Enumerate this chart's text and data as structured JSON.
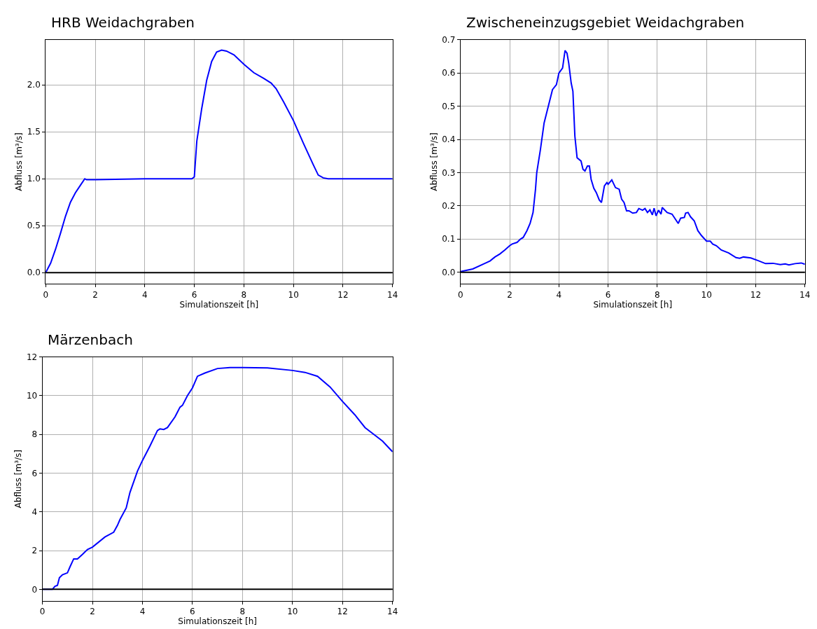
{
  "chart_data": [
    {
      "type": "line",
      "title": "HRB Weidachgraben",
      "xlabel": "Simulationszeit [h]",
      "ylabel": "Abfluss [m³/s]",
      "xlim": [
        0,
        14
      ],
      "ylim": [
        -0.12,
        2.48
      ],
      "xticks": [
        0,
        2,
        4,
        6,
        8,
        10,
        12,
        14
      ],
      "yticks": [
        {
          "value": 0,
          "label": "0.0"
        },
        {
          "value": 0.5,
          "label": "0.5"
        },
        {
          "value": 1,
          "label": "1.0"
        },
        {
          "value": 1.5,
          "label": "1.5"
        },
        {
          "value": 2,
          "label": "2.0"
        }
      ],
      "grid": true,
      "ref_lines": [
        {
          "axis": "y",
          "value": 0,
          "color": "#000000"
        }
      ],
      "series": [
        {
          "color": "#0000ff",
          "x": [
            0,
            0.2,
            0.4,
            0.6,
            0.8,
            1.0,
            1.2,
            1.4,
            1.58,
            1.65,
            2,
            4,
            5.9,
            6.0,
            6.1,
            6.3,
            6.5,
            6.7,
            6.9,
            7.1,
            7.3,
            7.6,
            8.0,
            8.4,
            8.8,
            9.1,
            9.3,
            9.6,
            10.0,
            10.4,
            10.8,
            11.0,
            11.2,
            11.4,
            12,
            14
          ],
          "values": [
            0,
            0.1,
            0.25,
            0.42,
            0.6,
            0.75,
            0.85,
            0.93,
            1.0,
            0.99,
            0.99,
            1.0,
            1.0,
            1.02,
            1.4,
            1.75,
            2.05,
            2.25,
            2.35,
            2.37,
            2.36,
            2.32,
            2.22,
            2.13,
            2.07,
            2.02,
            1.96,
            1.82,
            1.62,
            1.38,
            1.15,
            1.04,
            1.01,
            1.0,
            1.0,
            1.0
          ]
        }
      ]
    },
    {
      "type": "line",
      "title": "Zwischeneinzugsgebiet Weidachgraben",
      "xlabel": "Simulationszeit [h]",
      "ylabel": "Abfluss [m³/s]",
      "xlim": [
        0,
        14
      ],
      "ylim": [
        -0.035,
        0.7
      ],
      "xticks": [
        0,
        2,
        4,
        6,
        8,
        10,
        12,
        14
      ],
      "yticks": [
        {
          "value": 0,
          "label": "0.0"
        },
        {
          "value": 0.1,
          "label": "0.1"
        },
        {
          "value": 0.2,
          "label": "0.2"
        },
        {
          "value": 0.3,
          "label": "0.3"
        },
        {
          "value": 0.4,
          "label": "0.4"
        },
        {
          "value": 0.5,
          "label": "0.5"
        },
        {
          "value": 0.6,
          "label": "0.6"
        },
        {
          "value": 0.7,
          "label": "0.7"
        }
      ],
      "grid": true,
      "ref_lines": [
        {
          "axis": "y",
          "value": 0,
          "color": "#000000"
        }
      ],
      "series": [
        {
          "color": "#0000ff",
          "x": [
            0,
            0.5,
            1.0,
            1.2,
            1.4,
            1.6,
            1.8,
            2.0,
            2.1,
            2.3,
            2.44,
            2.55,
            2.7,
            2.83,
            2.95,
            3.05,
            3.1,
            3.25,
            3.4,
            3.74,
            3.9,
            4.0,
            4.15,
            4.25,
            4.33,
            4.4,
            4.5,
            4.57,
            4.65,
            4.74,
            4.9,
            4.98,
            5.06,
            5.16,
            5.24,
            5.31,
            5.42,
            5.52,
            5.64,
            5.73,
            5.85,
            5.95,
            6.0,
            6.15,
            6.3,
            6.45,
            6.55,
            6.65,
            6.75,
            6.85,
            7.0,
            7.15,
            7.25,
            7.4,
            7.5,
            7.6,
            7.7,
            7.8,
            7.87,
            7.95,
            8.05,
            8.15,
            8.2,
            8.4,
            8.6,
            8.85,
            8.95,
            9.1,
            9.15,
            9.25,
            9.35,
            9.5,
            9.65,
            9.8,
            10.0,
            10.15,
            10.25,
            10.4,
            10.6,
            10.9,
            11.2,
            11.35,
            11.5,
            11.8,
            12.1,
            12.4,
            12.7,
            13.0,
            13.2,
            13.35,
            13.6,
            13.85,
            14
          ],
          "values": [
            0.002,
            0.01,
            0.027,
            0.034,
            0.046,
            0.055,
            0.067,
            0.08,
            0.085,
            0.09,
            0.1,
            0.105,
            0.125,
            0.147,
            0.18,
            0.25,
            0.3,
            0.37,
            0.45,
            0.55,
            0.565,
            0.6,
            0.615,
            0.668,
            0.66,
            0.63,
            0.57,
            0.545,
            0.41,
            0.345,
            0.335,
            0.31,
            0.305,
            0.32,
            0.32,
            0.28,
            0.253,
            0.24,
            0.218,
            0.21,
            0.26,
            0.27,
            0.265,
            0.278,
            0.255,
            0.25,
            0.22,
            0.21,
            0.185,
            0.185,
            0.178,
            0.18,
            0.192,
            0.187,
            0.192,
            0.18,
            0.188,
            0.173,
            0.193,
            0.17,
            0.187,
            0.175,
            0.195,
            0.18,
            0.175,
            0.147,
            0.163,
            0.165,
            0.178,
            0.18,
            0.167,
            0.155,
            0.125,
            0.11,
            0.094,
            0.094,
            0.085,
            0.08,
            0.067,
            0.058,
            0.044,
            0.042,
            0.046,
            0.043,
            0.035,
            0.026,
            0.027,
            0.023,
            0.025,
            0.022,
            0.026,
            0.028,
            0.024
          ]
        }
      ]
    },
    {
      "type": "line",
      "title": "Märzenbach",
      "xlabel": "Simulationszeit [h]",
      "ylabel": "Abfluss [m³/s]",
      "xlim": [
        0,
        14
      ],
      "ylim": [
        -0.6,
        12
      ],
      "xticks": [
        0,
        2,
        4,
        6,
        8,
        10,
        12,
        14
      ],
      "yticks": [
        0,
        2,
        4,
        6,
        8,
        10,
        12
      ],
      "grid": true,
      "ref_lines": [
        {
          "axis": "y",
          "value": 0,
          "color": "#000000"
        }
      ],
      "series": [
        {
          "color": "#0000ff",
          "x": [
            0,
            0.4,
            0.5,
            0.6,
            0.68,
            0.8,
            1.0,
            1.1,
            1.25,
            1.4,
            1.6,
            1.8,
            2.0,
            2.5,
            2.85,
            3.0,
            3.1,
            3.35,
            3.5,
            3.8,
            4.0,
            4.3,
            4.6,
            4.7,
            4.85,
            5.0,
            5.3,
            5.5,
            5.6,
            5.8,
            6.0,
            6.2,
            6.5,
            7.0,
            7.5,
            8.0,
            9.0,
            10.0,
            10.5,
            11.0,
            11.5,
            12.0,
            12.5,
            12.9,
            13.2,
            13.6,
            14.0
          ],
          "values": [
            0,
            0,
            0.15,
            0.2,
            0.6,
            0.75,
            0.85,
            1.15,
            1.57,
            1.57,
            1.8,
            2.05,
            2.18,
            2.7,
            2.95,
            3.3,
            3.6,
            4.2,
            5.0,
            6.1,
            6.65,
            7.4,
            8.2,
            8.28,
            8.25,
            8.35,
            8.9,
            9.4,
            9.5,
            10.0,
            10.4,
            11.0,
            11.17,
            11.4,
            11.45,
            11.45,
            11.43,
            11.3,
            11.2,
            11.0,
            10.45,
            9.7,
            9.0,
            8.35,
            8.05,
            7.65,
            7.1
          ]
        }
      ]
    }
  ]
}
